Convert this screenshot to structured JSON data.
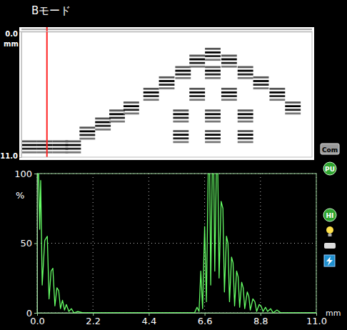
{
  "chart_data": [
    {
      "type": "bscan",
      "title": "Bモード",
      "y_label": "mm",
      "xlim": [
        0,
        41
      ],
      "ylim": [
        0,
        11
      ],
      "yticks": [
        {
          "value": 0,
          "label": "0.0"
        },
        {
          "value": 11,
          "label": "11.0"
        }
      ],
      "tick_labels": "y",
      "color": "#000000",
      "cursor": 3.6,
      "echoes": [
        {
          "x": 1.1,
          "depth": 10.1
        },
        {
          "x": 3.3,
          "depth": 10.1
        },
        {
          "x": 5.5,
          "depth": 10.1
        },
        {
          "x": 7.3,
          "depth": 10.1
        },
        {
          "x": 9.3,
          "depth": 8.9
        },
        {
          "x": 11.5,
          "depth": 8.1
        },
        {
          "x": 13.5,
          "depth": 7.4
        },
        {
          "x": 15.5,
          "depth": 6.7
        },
        {
          "x": 18.3,
          "depth": 5.5
        },
        {
          "x": 20.5,
          "depth": 4.5
        },
        {
          "x": 22.8,
          "depth": 3.6
        },
        {
          "x": 24.8,
          "depth": 2.6
        },
        {
          "x": 27.0,
          "depth": 2.0
        },
        {
          "x": 29.3,
          "depth": 2.6
        },
        {
          "x": 31.6,
          "depth": 3.6
        },
        {
          "x": 33.8,
          "depth": 4.5
        },
        {
          "x": 36.1,
          "depth": 5.5
        },
        {
          "x": 38.3,
          "depth": 6.7
        },
        {
          "x": 27.0,
          "depth": 3.6
        },
        {
          "x": 24.8,
          "depth": 5.5
        },
        {
          "x": 29.3,
          "depth": 5.5
        },
        {
          "x": 22.5,
          "depth": 7.4
        },
        {
          "x": 27.0,
          "depth": 7.4
        },
        {
          "x": 31.6,
          "depth": 7.4
        },
        {
          "x": 22.5,
          "depth": 9.2
        },
        {
          "x": 27.0,
          "depth": 9.2
        },
        {
          "x": 31.6,
          "depth": 9.2
        }
      ]
    },
    {
      "type": "line",
      "x_label": "mm",
      "y_label": "%",
      "xlim": [
        0,
        11
      ],
      "ylim": [
        0,
        100
      ],
      "xticks": [
        {
          "value": 0,
          "label": "0.0"
        },
        2.2,
        4.4,
        6.6,
        8.8,
        {
          "value": 11,
          "label": "11.0"
        }
      ],
      "yticks": [
        0,
        50,
        100
      ],
      "grid": true,
      "color": "#66ff66",
      "x": [
        0.0,
        0.02,
        0.06,
        0.1,
        0.14,
        0.2,
        0.3,
        0.4,
        0.47,
        0.55,
        0.62,
        0.7,
        0.78,
        0.85,
        0.92,
        1.0,
        1.08,
        1.15,
        1.25,
        1.35,
        1.45,
        1.6,
        1.8,
        3.0,
        6.2,
        6.3,
        6.38,
        6.45,
        6.52,
        6.6,
        6.67,
        6.74,
        6.8,
        6.84,
        6.9,
        6.96,
        7.0,
        7.06,
        7.12,
        7.17,
        7.25,
        7.32,
        7.38,
        7.46,
        7.52,
        7.58,
        7.66,
        7.72,
        7.78,
        7.86,
        7.92,
        7.98,
        8.06,
        8.12,
        8.18,
        8.28,
        8.34,
        8.4,
        8.5,
        8.58,
        8.65,
        8.75,
        8.82,
        8.9,
        9.0,
        9.08,
        9.2,
        9.3,
        9.45,
        9.6,
        11.0
      ],
      "values": [
        30,
        100,
        100,
        60,
        95,
        20,
        52,
        55,
        10,
        30,
        32,
        5,
        18,
        16,
        3,
        9,
        2,
        6,
        1,
        3,
        0,
        1,
        0,
        0,
        0,
        4,
        1,
        30,
        3,
        62,
        8,
        100,
        100,
        20,
        100,
        100,
        30,
        100,
        100,
        25,
        80,
        75,
        15,
        55,
        50,
        8,
        40,
        36,
        5,
        30,
        26,
        4,
        22,
        18,
        3,
        15,
        12,
        2,
        10,
        8,
        1,
        6,
        5,
        1,
        4,
        1,
        3,
        0,
        2,
        0,
        0
      ]
    }
  ],
  "indicators": [
    "Com",
    "PU",
    "HI"
  ]
}
